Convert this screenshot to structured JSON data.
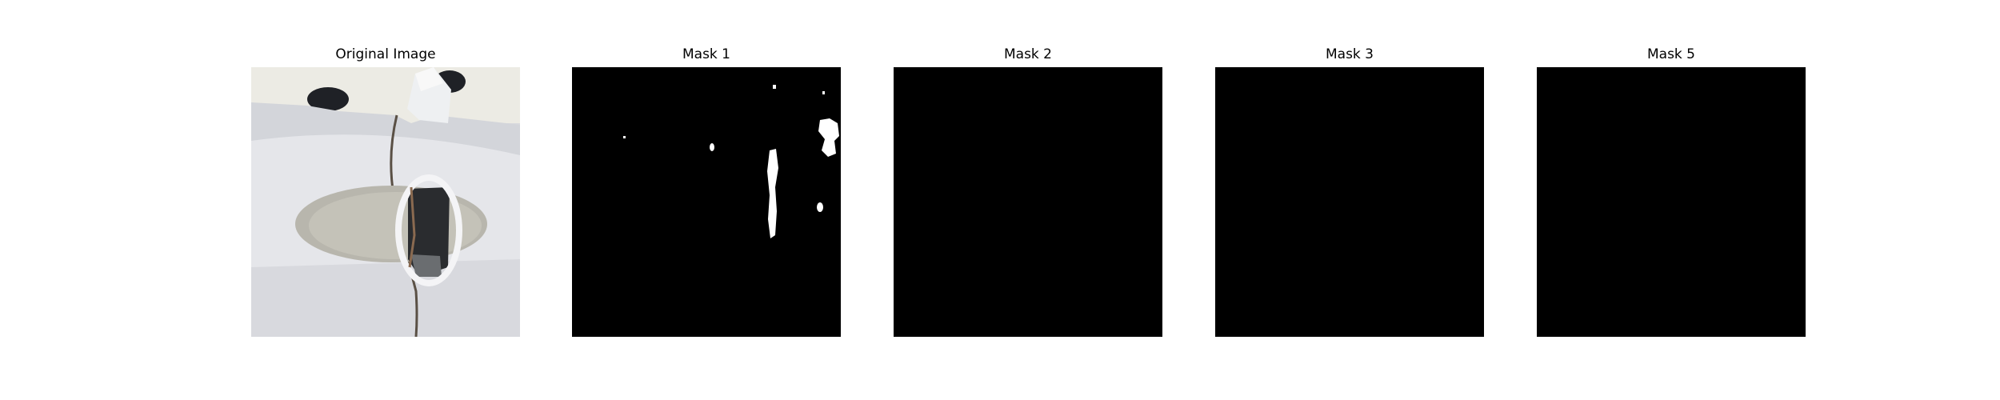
{
  "figure": {
    "panels": [
      {
        "title": "Original Image",
        "kind": "photo"
      },
      {
        "title": "Mask 1",
        "kind": "mask"
      },
      {
        "title": "Mask 2",
        "kind": "mask"
      },
      {
        "title": "Mask 3",
        "kind": "mask"
      },
      {
        "title": "Mask 5",
        "kind": "mask"
      }
    ]
  },
  "colors": {
    "background": "#ffffff",
    "mask_background": "#000000",
    "mask_foreground": "#ffffff"
  }
}
